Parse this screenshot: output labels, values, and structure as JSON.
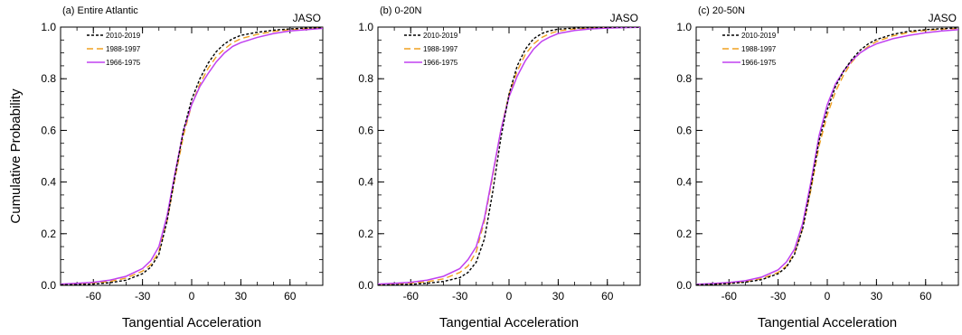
{
  "shared": {
    "ylabel": "Cumulative Probability",
    "xlabel": "Tangential Acceleration",
    "season_label": "JASO",
    "series_colors": {
      "2010-2019": "#000000",
      "1988-1997": "#f0a020",
      "1966-1975": "#c040f0"
    },
    "series_dashes": {
      "2010-2019": "3,2",
      "1988-1997": "7,4",
      "1966-1975": ""
    }
  },
  "chart_data": [
    {
      "type": "line",
      "title": "(a) Entire Atlantic",
      "xlim": [
        -80,
        80
      ],
      "ylim": [
        0,
        1
      ],
      "xticks": [
        -60,
        -30,
        0,
        30,
        60
      ],
      "yticks": [
        0.0,
        0.2,
        0.4,
        0.6,
        0.8,
        1.0
      ],
      "series": [
        {
          "name": "2010-2019",
          "x": [
            -80,
            -70,
            -60,
            -50,
            -40,
            -30,
            -25,
            -20,
            -15,
            -10,
            -5,
            0,
            5,
            10,
            15,
            20,
            25,
            30,
            40,
            50,
            60,
            70,
            80
          ],
          "y": [
            0.002,
            0.003,
            0.005,
            0.01,
            0.02,
            0.045,
            0.07,
            0.12,
            0.25,
            0.43,
            0.6,
            0.72,
            0.8,
            0.86,
            0.905,
            0.935,
            0.955,
            0.968,
            0.98,
            0.988,
            0.993,
            0.996,
            0.998
          ]
        },
        {
          "name": "1988-1997",
          "x": [
            -80,
            -70,
            -60,
            -50,
            -40,
            -30,
            -25,
            -20,
            -15,
            -10,
            -5,
            0,
            5,
            10,
            15,
            20,
            25,
            30,
            40,
            50,
            60,
            70,
            80
          ],
          "y": [
            0.004,
            0.006,
            0.009,
            0.015,
            0.028,
            0.055,
            0.08,
            0.13,
            0.25,
            0.42,
            0.58,
            0.7,
            0.78,
            0.84,
            0.885,
            0.915,
            0.94,
            0.955,
            0.972,
            0.983,
            0.99,
            0.994,
            0.997
          ]
        },
        {
          "name": "1966-1975",
          "x": [
            -80,
            -70,
            -60,
            -50,
            -40,
            -30,
            -25,
            -20,
            -15,
            -10,
            -5,
            0,
            5,
            10,
            15,
            20,
            25,
            30,
            40,
            50,
            60,
            70,
            80
          ],
          "y": [
            0.005,
            0.008,
            0.012,
            0.02,
            0.035,
            0.065,
            0.095,
            0.15,
            0.27,
            0.44,
            0.6,
            0.7,
            0.77,
            0.82,
            0.865,
            0.9,
            0.925,
            0.94,
            0.96,
            0.975,
            0.985,
            0.99,
            0.995
          ]
        }
      ]
    },
    {
      "type": "line",
      "title": "(b) 0-20N",
      "xlim": [
        -80,
        80
      ],
      "ylim": [
        0,
        1
      ],
      "xticks": [
        -60,
        -30,
        0,
        30,
        60
      ],
      "yticks": [
        0.0,
        0.2,
        0.4,
        0.6,
        0.8,
        1.0
      ],
      "series": [
        {
          "name": "2010-2019",
          "x": [
            -80,
            -70,
            -60,
            -50,
            -40,
            -30,
            -25,
            -20,
            -15,
            -10,
            -5,
            0,
            5,
            10,
            15,
            20,
            25,
            30,
            40,
            50,
            60,
            70,
            80
          ],
          "y": [
            0.001,
            0.002,
            0.004,
            0.008,
            0.015,
            0.03,
            0.05,
            0.09,
            0.18,
            0.36,
            0.57,
            0.74,
            0.85,
            0.915,
            0.955,
            0.975,
            0.986,
            0.992,
            0.996,
            0.998,
            0.999,
            1.0,
            1.0
          ]
        },
        {
          "name": "1988-1997",
          "x": [
            -80,
            -70,
            -60,
            -50,
            -40,
            -30,
            -25,
            -20,
            -15,
            -10,
            -5,
            0,
            5,
            10,
            15,
            20,
            25,
            30,
            40,
            50,
            60,
            70,
            80
          ],
          "y": [
            0.003,
            0.005,
            0.008,
            0.014,
            0.025,
            0.05,
            0.075,
            0.13,
            0.25,
            0.42,
            0.6,
            0.74,
            0.83,
            0.895,
            0.935,
            0.96,
            0.975,
            0.985,
            0.993,
            0.996,
            0.998,
            0.999,
            1.0
          ]
        },
        {
          "name": "1966-1975",
          "x": [
            -80,
            -70,
            -60,
            -50,
            -40,
            -30,
            -25,
            -20,
            -15,
            -10,
            -5,
            0,
            5,
            10,
            15,
            20,
            25,
            30,
            40,
            50,
            60,
            70,
            80
          ],
          "y": [
            0.005,
            0.008,
            0.012,
            0.02,
            0.035,
            0.065,
            0.1,
            0.15,
            0.26,
            0.43,
            0.6,
            0.73,
            0.81,
            0.87,
            0.915,
            0.945,
            0.962,
            0.975,
            0.987,
            0.993,
            0.996,
            0.998,
            0.999
          ]
        }
      ]
    },
    {
      "type": "line",
      "title": "(c) 20-50N",
      "xlim": [
        -80,
        80
      ],
      "ylim": [
        0,
        1
      ],
      "xticks": [
        -60,
        -30,
        0,
        30,
        60
      ],
      "yticks": [
        0.0,
        0.2,
        0.4,
        0.6,
        0.8,
        1.0
      ],
      "series": [
        {
          "name": "2010-2019",
          "x": [
            -80,
            -70,
            -60,
            -50,
            -40,
            -30,
            -25,
            -20,
            -15,
            -10,
            -5,
            0,
            5,
            10,
            15,
            20,
            25,
            30,
            40,
            50,
            60,
            70,
            80
          ],
          "y": [
            0.002,
            0.004,
            0.007,
            0.012,
            0.022,
            0.045,
            0.07,
            0.12,
            0.22,
            0.38,
            0.56,
            0.68,
            0.77,
            0.83,
            0.875,
            0.91,
            0.935,
            0.952,
            0.972,
            0.984,
            0.99,
            0.994,
            0.997
          ]
        },
        {
          "name": "1988-1997",
          "x": [
            -80,
            -70,
            -60,
            -50,
            -40,
            -30,
            -25,
            -20,
            -15,
            -10,
            -5,
            0,
            5,
            10,
            15,
            20,
            25,
            30,
            40,
            50,
            60,
            70,
            80
          ],
          "y": [
            0.003,
            0.005,
            0.008,
            0.014,
            0.026,
            0.05,
            0.075,
            0.125,
            0.22,
            0.37,
            0.54,
            0.66,
            0.75,
            0.815,
            0.865,
            0.9,
            0.925,
            0.944,
            0.966,
            0.979,
            0.987,
            0.992,
            0.995
          ]
        },
        {
          "name": "1966-1975",
          "x": [
            -80,
            -70,
            -60,
            -50,
            -40,
            -30,
            -25,
            -20,
            -15,
            -10,
            -5,
            0,
            5,
            10,
            15,
            20,
            25,
            30,
            40,
            50,
            60,
            70,
            80
          ],
          "y": [
            0.004,
            0.007,
            0.011,
            0.018,
            0.032,
            0.06,
            0.09,
            0.14,
            0.24,
            0.4,
            0.58,
            0.7,
            0.78,
            0.83,
            0.87,
            0.9,
            0.92,
            0.935,
            0.955,
            0.968,
            0.978,
            0.985,
            0.99
          ]
        }
      ]
    }
  ]
}
